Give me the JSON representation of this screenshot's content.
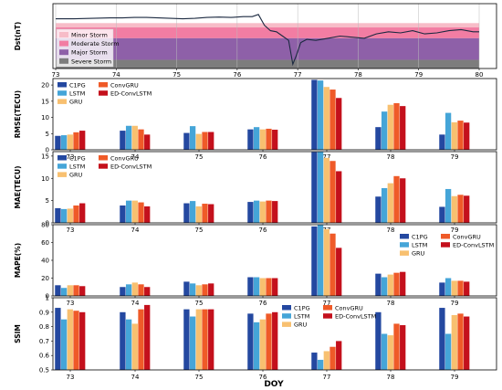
{
  "colors": {
    "C1PG": "#2448a0",
    "LSTM": "#45a5d8",
    "GRU": "#f8c070",
    "ConvGRU": "#ef5a28",
    "ED-ConvLSTM": "#c4101c",
    "minor_storm": "#f7bcc8",
    "moderate_storm": "#f27da3",
    "major_storm": "#8e60a8",
    "severe_storm": "#7d7d7d",
    "dst_line": "#1b2940"
  },
  "x_axis_label": "DOY",
  "chart_data": [
    {
      "type": "line",
      "ylabel": "Dst(nT)",
      "xlim": [
        73,
        80
      ],
      "ylim": [
        -240,
        60
      ],
      "xticks": [
        "73",
        "74",
        "75",
        "76",
        "77",
        "78",
        "79",
        "80"
      ],
      "grid": true,
      "legend_position": "lower-left",
      "legend": [
        "Minor Storm",
        "Moderate Storm",
        "Major Storm",
        "Severe Storm"
      ],
      "bands": [
        {
          "name": "Minor Storm",
          "from": -50,
          "to": -30
        },
        {
          "name": "Moderate Storm",
          "from": -100,
          "to": -50
        },
        {
          "name": "Major Storm",
          "from": -200,
          "to": -100
        },
        {
          "name": "Severe Storm",
          "from": -250,
          "to": -200
        }
      ],
      "series": [
        {
          "x": [
            73.0,
            73.3,
            73.6,
            73.9,
            74.1,
            74.3,
            74.5,
            74.7,
            74.9,
            75.1,
            75.3,
            75.5,
            75.7,
            75.9,
            76.1,
            76.25,
            76.35,
            76.45,
            76.55,
            76.65,
            76.75,
            76.85,
            76.92,
            76.97,
            77.05,
            77.15,
            77.3,
            77.5,
            77.7,
            77.9,
            78.1,
            78.3,
            78.5,
            78.7,
            78.9,
            79.1,
            79.3,
            79.5,
            79.7,
            79.9,
            80.0
          ],
          "y": [
            -10,
            -10,
            -8,
            -6,
            -6,
            -4,
            -4,
            -6,
            -8,
            -10,
            -8,
            -4,
            -2,
            -4,
            0,
            0,
            10,
            -40,
            -65,
            -70,
            -90,
            -110,
            -220,
            -185,
            -120,
            -105,
            -110,
            -100,
            -90,
            -95,
            -100,
            -80,
            -70,
            -75,
            -65,
            -80,
            -75,
            -65,
            -60,
            -70,
            -70
          ]
        }
      ]
    },
    {
      "type": "bar",
      "ylabel": "RMSE(TECU)",
      "ylim": [
        0,
        22
      ],
      "yticks": [
        0,
        5,
        10,
        15,
        20
      ],
      "categories": [
        "73",
        "74",
        "75",
        "76",
        "77",
        "78",
        "79"
      ],
      "legend": [
        "C1PG",
        "LSTM",
        "GRU",
        "ConvGRU",
        "ED-ConvLSTM"
      ],
      "legend_position": "upper-left",
      "series": [
        {
          "name": "C1PG",
          "values": [
            4.3,
            5.9,
            5.2,
            6.3,
            21.6,
            7.0,
            4.7
          ]
        },
        {
          "name": "LSTM",
          "values": [
            4.5,
            7.4,
            7.3,
            7.0,
            21.4,
            11.8,
            11.4
          ]
        },
        {
          "name": "GRU",
          "values": [
            4.7,
            7.4,
            4.9,
            6.3,
            19.4,
            13.9,
            8.5
          ]
        },
        {
          "name": "ConvGRU",
          "values": [
            5.4,
            6.3,
            5.5,
            6.5,
            18.6,
            14.4,
            9.0
          ]
        },
        {
          "name": "ED-ConvLSTM",
          "values": [
            5.9,
            4.7,
            5.5,
            6.2,
            16.0,
            13.5,
            8.4
          ]
        }
      ]
    },
    {
      "type": "bar",
      "ylabel": "MAE(TECU)",
      "ylim": [
        0,
        16
      ],
      "yticks": [
        0,
        5,
        10,
        15
      ],
      "categories": [
        "73",
        "74",
        "75",
        "76",
        "77",
        "78",
        "79"
      ],
      "legend": [
        "C1PG",
        "LSTM",
        "GRU",
        "ConvGRU",
        "ED-ConvLSTM"
      ],
      "legend_position": "upper-left",
      "series": [
        {
          "name": "C1PG",
          "values": [
            3.3,
            3.9,
            4.4,
            4.7,
            15.9,
            5.9,
            3.6
          ]
        },
        {
          "name": "LSTM",
          "values": [
            3.1,
            5.0,
            4.9,
            5.0,
            16.0,
            7.8,
            7.6
          ]
        },
        {
          "name": "GRU",
          "values": [
            3.2,
            5.0,
            3.7,
            4.8,
            14.6,
            8.9,
            6.0
          ]
        },
        {
          "name": "ConvGRU",
          "values": [
            3.9,
            4.6,
            4.3,
            5.0,
            13.9,
            10.5,
            6.3
          ]
        },
        {
          "name": "ED-ConvLSTM",
          "values": [
            4.4,
            3.7,
            4.2,
            4.9,
            11.6,
            10.0,
            6.1
          ]
        }
      ]
    },
    {
      "type": "bar",
      "ylabel": "MAPE(%)",
      "ylim": [
        0,
        80
      ],
      "yticks": [
        0,
        20,
        40,
        60,
        80
      ],
      "categories": [
        "73",
        "74",
        "75",
        "76",
        "77",
        "78",
        "79"
      ],
      "legend": [
        "C1PG",
        "LSTM",
        "GRU",
        "ConvGRU",
        "ED-ConvLSTM"
      ],
      "legend_position": "upper-right",
      "series": [
        {
          "name": "C1PG",
          "values": [
            12.0,
            10.0,
            16.0,
            21.0,
            78.0,
            25.0,
            15.0
          ]
        },
        {
          "name": "LSTM",
          "values": [
            9.0,
            13.0,
            14.0,
            21.0,
            80.0,
            21.0,
            20.0
          ]
        },
        {
          "name": "GRU",
          "values": [
            12.0,
            15.0,
            12.0,
            20.0,
            75.0,
            24.0,
            17.0
          ]
        },
        {
          "name": "ConvGRU",
          "values": [
            12.0,
            13.0,
            13.0,
            20.0,
            70.0,
            26.0,
            17.0
          ]
        },
        {
          "name": "ED-ConvLSTM",
          "values": [
            11.0,
            10.0,
            14.0,
            20.0,
            54.0,
            27.0,
            16.0
          ]
        }
      ]
    },
    {
      "type": "bar",
      "ylabel": "SSIM",
      "ylim": [
        0.5,
        1.0
      ],
      "yticks": [
        0.5,
        0.6,
        0.7,
        0.8,
        0.9,
        1.0
      ],
      "categories": [
        "73",
        "74",
        "75",
        "76",
        "77",
        "78",
        "79"
      ],
      "legend": [
        "C1PG",
        "LSTM",
        "GRU",
        "ConvGRU",
        "ED-ConvLSTM"
      ],
      "legend_position": "upper-center",
      "series": [
        {
          "name": "C1PG",
          "values": [
            0.93,
            0.9,
            0.92,
            0.89,
            0.62,
            0.9,
            0.93
          ]
        },
        {
          "name": "LSTM",
          "values": [
            0.85,
            0.85,
            0.87,
            0.83,
            0.57,
            0.75,
            0.75
          ]
        },
        {
          "name": "GRU",
          "values": [
            0.92,
            0.82,
            0.92,
            0.85,
            0.63,
            0.74,
            0.88
          ]
        },
        {
          "name": "ConvGRU",
          "values": [
            0.91,
            0.92,
            0.92,
            0.89,
            0.66,
            0.82,
            0.89
          ]
        },
        {
          "name": "ED-ConvLSTM",
          "values": [
            0.9,
            0.95,
            0.92,
            0.9,
            0.7,
            0.81,
            0.87
          ]
        }
      ]
    }
  ]
}
